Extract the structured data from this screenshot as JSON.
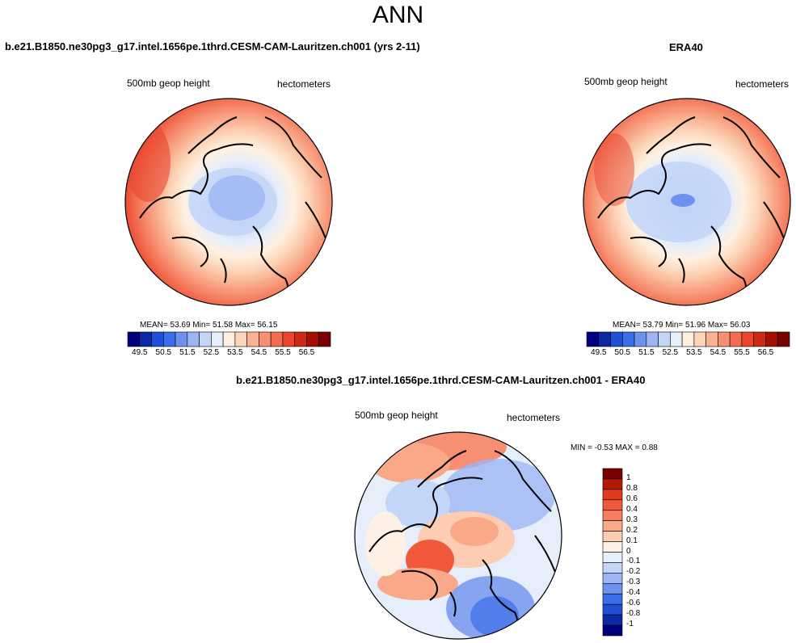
{
  "figure": {
    "title": "ANN",
    "panels": [
      {
        "title": "b.e21.B1850.ne30pg3_g17.intel.1656pe.1thrd.CESM-CAM-Lauritzen.ch001 (yrs 2-11)",
        "variable": "500mb geop height",
        "units": "hectometers",
        "stats": "MEAN=  53.69  Min=  51.58  Max=  56.15"
      },
      {
        "title": "ERA40",
        "variable": "500mb geop height",
        "units": "hectometers",
        "stats": "MEAN=  53.79  Min=  51.96  Max=  56.03"
      },
      {
        "title": "b.e21.B1850.ne30pg3_g17.intel.1656pe.1thrd.CESM-CAM-Lauritzen.ch001 - ERA40",
        "variable": "500mb geop height",
        "units": "hectometers",
        "stats": "MIN =  -0.53 MAX =   0.88"
      }
    ],
    "colorbar_abs": {
      "labels": [
        "49.5",
        "50.5",
        "51.5",
        "52.5",
        "53.5",
        "54.5",
        "55.5",
        "56.5"
      ],
      "colors": [
        "#00007f",
        "#0b29a3",
        "#1f4fd6",
        "#3b6ee8",
        "#6e91ee",
        "#9db5f2",
        "#c4d6f7",
        "#e6eefb",
        "#fff0e0",
        "#fcd4b7",
        "#f9b394",
        "#f79072",
        "#f26d4f",
        "#e8462e",
        "#cc2a13",
        "#a31000",
        "#7a0000"
      ]
    },
    "colorbar_diff": {
      "labels": [
        "1",
        "0.8",
        "0.6",
        "0.4",
        "0.3",
        "0.2",
        "0.1",
        "0",
        "-0.1",
        "-0.2",
        "-0.3",
        "-0.4",
        "-0.6",
        "-0.8",
        "-1"
      ],
      "colors": [
        "#7a0000",
        "#b31a05",
        "#e03b1f",
        "#f05a3a",
        "#f57f5f",
        "#f9a888",
        "#fccdb3",
        "#fff0e6",
        "#e6eefb",
        "#c4d6f7",
        "#9db5f2",
        "#6e91ee",
        "#3b6ee8",
        "#1f4fd6",
        "#0b29a3",
        "#00007f"
      ]
    }
  }
}
